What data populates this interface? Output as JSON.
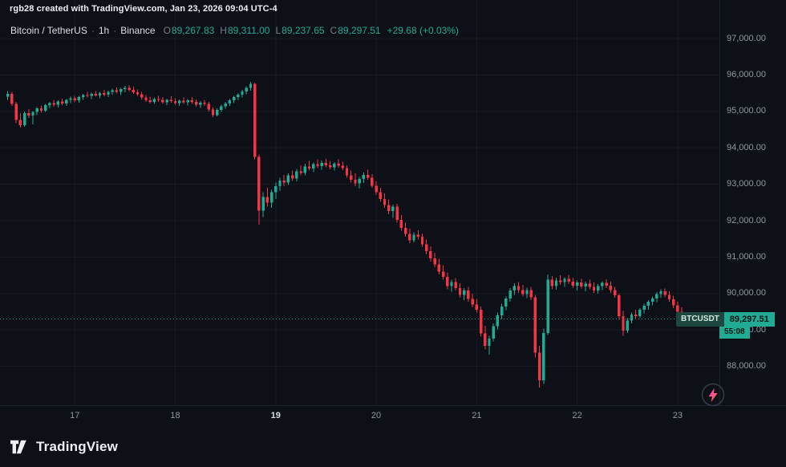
{
  "attribution": "rgb28 created with TradingView.com, Jan 23, 2026 09:04 UTC-4",
  "legend": {
    "symbol": "Bitcoin / TetherUS",
    "dot": "·",
    "interval": "1h",
    "exchange": "Binance",
    "ohlc": [
      {
        "label": "O",
        "value": "89,267.83"
      },
      {
        "label": "H",
        "value": "89,311.00"
      },
      {
        "label": "L",
        "value": "89,237.65"
      },
      {
        "label": "C",
        "value": "89,297.51"
      }
    ],
    "change": "+29.68 (+0.03%)"
  },
  "price_badge": {
    "symbol": "BTCUSDT",
    "price": "89,297.51",
    "countdown": "55:08"
  },
  "price_axis": {
    "labels": [
      "97,000.00",
      "96,000.00",
      "95,000.00",
      "94,000.00",
      "93,000.00",
      "92,000.00",
      "91,000.00",
      "90,000.00",
      "89,000.00",
      "88,000.00"
    ]
  },
  "footer": {
    "logo_text": "TradingView"
  },
  "colors": {
    "bg": "#0d1017",
    "border": "#1c212e",
    "grid": "rgba(255,255,255,0.045)",
    "up": "#22ab94",
    "down": "#f23645",
    "text_bright": "#eceff4",
    "text_muted": "#9196a1"
  },
  "chart_data": {
    "type": "candlestick",
    "title": "Bitcoin / TetherUS",
    "symbol": "BTCUSDT",
    "exchange": "Binance",
    "interval": "1h",
    "last_price": 89297.51,
    "change": 29.68,
    "change_pct": "+0.03%",
    "ohlc_last": {
      "open": 89267.83,
      "high": 89311.0,
      "low": 89237.65,
      "close": 89297.51
    },
    "y_axis": {
      "min": 88000,
      "max": 97000,
      "step": 1000
    },
    "x_ticks": [
      {
        "label": "17",
        "index": 16
      },
      {
        "label": "18",
        "index": 40
      },
      {
        "label": "19",
        "index": 64,
        "emphasis": true
      },
      {
        "label": "20",
        "index": 88
      },
      {
        "label": "21",
        "index": 112
      },
      {
        "label": "22",
        "index": 136
      },
      {
        "label": "23",
        "index": 160
      }
    ],
    "candles": [
      [
        95400,
        95560,
        95320,
        95480
      ],
      [
        95480,
        95530,
        95150,
        95200
      ],
      [
        95200,
        95260,
        94680,
        94760
      ],
      [
        94760,
        94940,
        94550,
        94620
      ],
      [
        94620,
        95000,
        94580,
        94950
      ],
      [
        94950,
        95060,
        94820,
        94880
      ],
      [
        94880,
        95010,
        94640,
        94980
      ],
      [
        94980,
        95120,
        94900,
        95080
      ],
      [
        95080,
        95160,
        94960,
        95020
      ],
      [
        95020,
        95200,
        94990,
        95170
      ],
      [
        95170,
        95260,
        95080,
        95230
      ],
      [
        95230,
        95320,
        95130,
        95180
      ],
      [
        95180,
        95300,
        95110,
        95270
      ],
      [
        95270,
        95350,
        95170,
        95220
      ],
      [
        95220,
        95340,
        95150,
        95310
      ],
      [
        95310,
        95400,
        95230,
        95360
      ],
      [
        95360,
        95430,
        95250,
        95300
      ],
      [
        95300,
        95420,
        95240,
        95390
      ],
      [
        95390,
        95480,
        95310,
        95450
      ],
      [
        95450,
        95540,
        95380,
        95420
      ],
      [
        95420,
        95510,
        95340,
        95480
      ],
      [
        95480,
        95560,
        95400,
        95440
      ],
      [
        95440,
        95530,
        95360,
        95500
      ],
      [
        95500,
        95590,
        95410,
        95460
      ],
      [
        95460,
        95570,
        95390,
        95540
      ],
      [
        95540,
        95620,
        95460,
        95580
      ],
      [
        95580,
        95660,
        95490,
        95530
      ],
      [
        95530,
        95640,
        95450,
        95610
      ],
      [
        95610,
        95700,
        95520,
        95650
      ],
      [
        95650,
        95720,
        95550,
        95590
      ],
      [
        95590,
        95680,
        95480,
        95520
      ],
      [
        95520,
        95600,
        95420,
        95470
      ],
      [
        95470,
        95530,
        95330,
        95380
      ],
      [
        95380,
        95450,
        95260,
        95300
      ],
      [
        95300,
        95400,
        95220,
        95260
      ],
      [
        95260,
        95380,
        95200,
        95340
      ],
      [
        95340,
        95420,
        95260,
        95310
      ],
      [
        95310,
        95390,
        95210,
        95250
      ],
      [
        95250,
        95350,
        95170,
        95320
      ],
      [
        95320,
        95410,
        95240,
        95280
      ],
      [
        95280,
        95360,
        95180,
        95230
      ],
      [
        95230,
        95330,
        95150,
        95290
      ],
      [
        95290,
        95380,
        95200,
        95250
      ],
      [
        95250,
        95340,
        95160,
        95300
      ],
      [
        95300,
        95390,
        95210,
        95260
      ],
      [
        95260,
        95330,
        95130,
        95180
      ],
      [
        95180,
        95280,
        95090,
        95240
      ],
      [
        95240,
        95320,
        95150,
        95200
      ],
      [
        95200,
        95260,
        95000,
        95050
      ],
      [
        95050,
        95120,
        94840,
        94900
      ],
      [
        94900,
        95080,
        94860,
        95040
      ],
      [
        95040,
        95180,
        94980,
        95140
      ],
      [
        95140,
        95260,
        95070,
        95220
      ],
      [
        95220,
        95340,
        95150,
        95300
      ],
      [
        95300,
        95420,
        95230,
        95390
      ],
      [
        95390,
        95500,
        95310,
        95460
      ],
      [
        95460,
        95590,
        95380,
        95550
      ],
      [
        95550,
        95690,
        95470,
        95650
      ],
      [
        95650,
        95810,
        95570,
        95760
      ],
      [
        95760,
        95790,
        93680,
        93750
      ],
      [
        93750,
        93820,
        91890,
        92280
      ],
      [
        92280,
        92780,
        92100,
        92650
      ],
      [
        92650,
        92900,
        92380,
        92500
      ],
      [
        92500,
        92850,
        92350,
        92780
      ],
      [
        92780,
        93050,
        92600,
        92950
      ],
      [
        92950,
        93180,
        92820,
        93100
      ],
      [
        93100,
        93260,
        92950,
        93050
      ],
      [
        93050,
        93300,
        92980,
        93240
      ],
      [
        93240,
        93380,
        93090,
        93160
      ],
      [
        93160,
        93420,
        93080,
        93360
      ],
      [
        93360,
        93520,
        93250,
        93310
      ],
      [
        93310,
        93560,
        93240,
        93490
      ],
      [
        93490,
        93640,
        93380,
        93430
      ],
      [
        93430,
        93600,
        93330,
        93550
      ],
      [
        93550,
        93680,
        93440,
        93500
      ],
      [
        93500,
        93650,
        93400,
        93590
      ],
      [
        93590,
        93700,
        93470,
        93520
      ],
      [
        93520,
        93640,
        93410,
        93460
      ],
      [
        93460,
        93610,
        93380,
        93560
      ],
      [
        93560,
        93680,
        93450,
        93510
      ],
      [
        93510,
        93620,
        93390,
        93440
      ],
      [
        93440,
        93520,
        93180,
        93240
      ],
      [
        93240,
        93380,
        93050,
        93120
      ],
      [
        93120,
        93300,
        92950,
        93020
      ],
      [
        93020,
        93200,
        92880,
        93150
      ],
      [
        93150,
        93320,
        93040,
        93260
      ],
      [
        93260,
        93400,
        93120,
        93180
      ],
      [
        93180,
        93280,
        92900,
        92960
      ],
      [
        92960,
        93080,
        92700,
        92780
      ],
      [
        92780,
        92900,
        92520,
        92600
      ],
      [
        92600,
        92750,
        92350,
        92430
      ],
      [
        92430,
        92580,
        92180,
        92260
      ],
      [
        92260,
        92440,
        92080,
        92380
      ],
      [
        92380,
        92460,
        91950,
        92020
      ],
      [
        92020,
        92150,
        91720,
        91800
      ],
      [
        91800,
        91950,
        91560,
        91640
      ],
      [
        91640,
        91780,
        91380,
        91460
      ],
      [
        91460,
        91680,
        91400,
        91620
      ],
      [
        91620,
        91740,
        91480,
        91560
      ],
      [
        91560,
        91650,
        91280,
        91350
      ],
      [
        91350,
        91480,
        91080,
        91160
      ],
      [
        91160,
        91300,
        90880,
        90960
      ],
      [
        90960,
        91120,
        90720,
        90800
      ],
      [
        90800,
        90950,
        90520,
        90600
      ],
      [
        90600,
        90780,
        90380,
        90460
      ],
      [
        90460,
        90580,
        90120,
        90200
      ],
      [
        90200,
        90380,
        90050,
        90320
      ],
      [
        90320,
        90420,
        90080,
        90150
      ],
      [
        90150,
        90280,
        89880,
        89960
      ],
      [
        89960,
        90150,
        89820,
        90080
      ],
      [
        90080,
        90180,
        89780,
        89850
      ],
      [
        89850,
        90000,
        89620,
        89700
      ],
      [
        89700,
        89850,
        89480,
        89560
      ],
      [
        89560,
        89640,
        88820,
        88900
      ],
      [
        88900,
        89120,
        88460,
        88560
      ],
      [
        88560,
        88840,
        88320,
        88760
      ],
      [
        88760,
        89180,
        88680,
        89100
      ],
      [
        89100,
        89480,
        89020,
        89400
      ],
      [
        89400,
        89720,
        89300,
        89640
      ],
      [
        89640,
        89920,
        89540,
        89860
      ],
      [
        89860,
        90150,
        89780,
        90080
      ],
      [
        90080,
        90280,
        89960,
        90200
      ],
      [
        90200,
        90320,
        90020,
        90100
      ],
      [
        90100,
        90240,
        89920,
        89990
      ],
      [
        89990,
        90160,
        89870,
        90090
      ],
      [
        90090,
        90180,
        89820,
        89900
      ],
      [
        89900,
        89960,
        88240,
        88380
      ],
      [
        88380,
        88560,
        87420,
        87620
      ],
      [
        87620,
        89040,
        87520,
        88920
      ],
      [
        88920,
        90520,
        88860,
        90380
      ],
      [
        90380,
        90480,
        90120,
        90200
      ],
      [
        90200,
        90440,
        90110,
        90360
      ],
      [
        90360,
        90500,
        90240,
        90310
      ],
      [
        90310,
        90450,
        90180,
        90400
      ],
      [
        90400,
        90510,
        90260,
        90330
      ],
      [
        90330,
        90430,
        90150,
        90220
      ],
      [
        90220,
        90360,
        90080,
        90300
      ],
      [
        90300,
        90400,
        90140,
        90190
      ],
      [
        90190,
        90330,
        90060,
        90270
      ],
      [
        90270,
        90380,
        90120,
        90180
      ],
      [
        90180,
        90300,
        90020,
        90080
      ],
      [
        90080,
        90260,
        90000,
        90210
      ],
      [
        90210,
        90340,
        90090,
        90290
      ],
      [
        90290,
        90390,
        90150,
        90220
      ],
      [
        90220,
        90330,
        90020,
        90090
      ],
      [
        90090,
        90180,
        89880,
        89950
      ],
      [
        89950,
        90000,
        89280,
        89380
      ],
      [
        89380,
        89520,
        88840,
        88980
      ],
      [
        88980,
        89320,
        88920,
        89260
      ],
      [
        89260,
        89480,
        89180,
        89420
      ],
      [
        89420,
        89560,
        89300,
        89380
      ],
      [
        89380,
        89600,
        89320,
        89550
      ],
      [
        89550,
        89720,
        89460,
        89670
      ],
      [
        89670,
        89820,
        89560,
        89780
      ],
      [
        89780,
        89920,
        89680,
        89860
      ],
      [
        89860,
        90040,
        89760,
        89980
      ],
      [
        89980,
        90120,
        89880,
        90060
      ],
      [
        90060,
        90140,
        89900,
        89960
      ],
      [
        89960,
        90060,
        89780,
        89840
      ],
      [
        89840,
        89940,
        89600,
        89680
      ],
      [
        89680,
        89780,
        89420,
        89500
      ],
      [
        89500,
        89620,
        89100,
        89270
      ],
      [
        89267.83,
        89311,
        89237.65,
        89297.51
      ]
    ]
  }
}
